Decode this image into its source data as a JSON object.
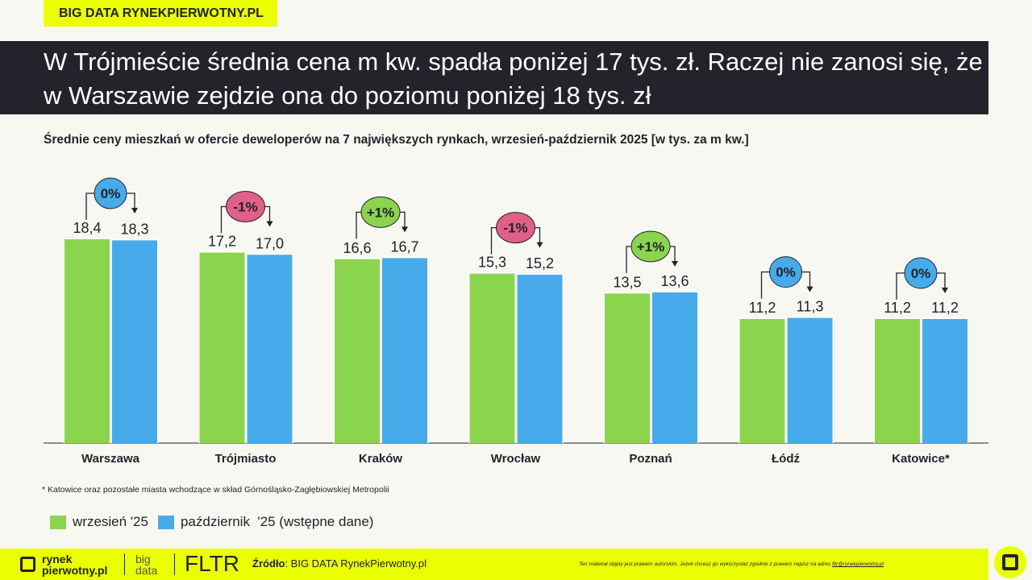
{
  "tag": "BIG DATA RYNEKPIERWOTNY.PL",
  "title": "W Trójmieście średnia cena m kw. spadła poniżej 17 tys. zł. Raczej nie zanosi się, że w Warszawie zejdzie ona do poziomu poniżej 18 tys. zł",
  "subtitle": "Średnie ceny mieszkań w ofercie deweloperów na 7 największych rynkach, wrzesień-październik 2025 [w tys. za m kw.]",
  "note": "* Katowice oraz pozostałe miasta wchodzące w skład Górnośląsko-Zagłębiowskiej Metropolii",
  "chart_data": {
    "type": "bar",
    "categories": [
      "Warszawa",
      "Trójmiasto",
      "Kraków",
      "Wrocław",
      "Poznań",
      "Łódź",
      "Katowice*"
    ],
    "series": [
      {
        "name": "wrzesień '25",
        "color": "#8bd44e",
        "values": [
          18.4,
          17.2,
          16.6,
          15.3,
          13.5,
          11.2,
          11.2
        ],
        "labels": [
          "18,4",
          "17,2",
          "16,6",
          "15,3",
          "13,5",
          "11,2",
          "11,2"
        ]
      },
      {
        "name": "październik  '25 (wstępne dane)",
        "color": "#47abeb",
        "values": [
          18.3,
          17.0,
          16.7,
          15.2,
          13.6,
          11.3,
          11.2
        ],
        "labels": [
          "18,3",
          "17,0",
          "16,7",
          "15,2",
          "13,6",
          "11,3",
          "11,2"
        ]
      }
    ],
    "changes": [
      "0%",
      "-1%",
      "+1%",
      "-1%",
      "+1%",
      "0%",
      "0%"
    ],
    "change_colors": {
      "0%": "#47abeb",
      "-1%": "#e0608a",
      "+1%": "#8bd44e"
    },
    "ylim": [
      0,
      19
    ]
  },
  "footer": {
    "logo1a": "rynek",
    "logo1b": "pierwotny.pl",
    "logo2a": "big",
    "logo2b": "data",
    "logo3": "FLTR",
    "source_label": "Źródło",
    "source": ": BIG DATA RynekPierwotny.pl",
    "copyright": "Ten materiał objęty jest prawem autorskim. Jeżeli chcesz go wykorzystać zgodnie z prawem napisz na adres ",
    "email": "fltr@rynekpierwotny.pl"
  },
  "colors": {
    "accent": "#eaff00",
    "dark": "#22232b"
  }
}
